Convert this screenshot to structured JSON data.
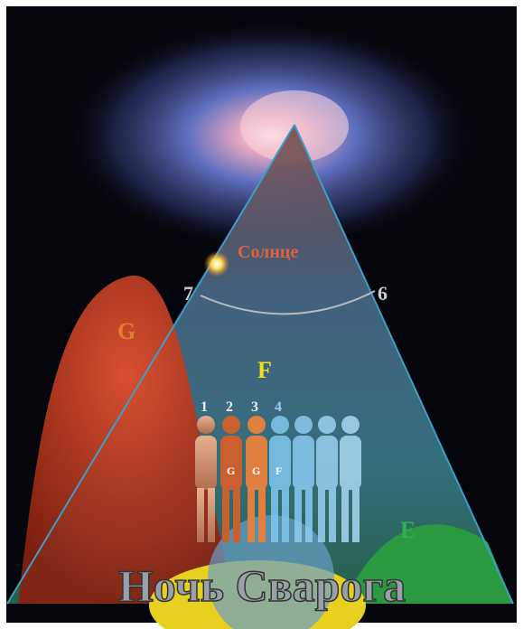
{
  "labels": {
    "sun": "Солнце",
    "left_number": "7",
    "right_number": "6",
    "zone_g": "G",
    "zone_f": "F",
    "zone_e": "E"
  },
  "figures": [
    {
      "number": "1"
    },
    {
      "number": "2",
      "mark": "G"
    },
    {
      "number": "3",
      "mark": "G"
    },
    {
      "number": "4",
      "mark": "F"
    }
  ],
  "caption": "Ночь Сварога"
}
